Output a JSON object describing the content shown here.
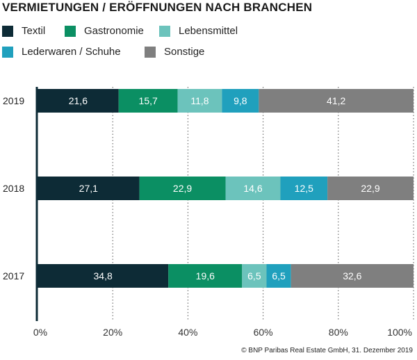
{
  "chart_data": {
    "type": "bar",
    "orientation": "horizontal",
    "stacked": true,
    "title": "VERMIETUNGEN / ERÖFFNUNGEN NACH BRANCHEN",
    "categories": [
      "2019",
      "2018",
      "2017"
    ],
    "series": [
      {
        "name": "Textil",
        "color": "#0d2b36",
        "values": [
          21.6,
          27.1,
          34.8
        ]
      },
      {
        "name": "Gastronomie",
        "color": "#0b8f63",
        "values": [
          15.7,
          22.9,
          19.6
        ]
      },
      {
        "name": "Lebensmittel",
        "color": "#6cc3bc",
        "values": [
          11.8,
          14.6,
          6.5
        ]
      },
      {
        "name": "Lederwaren / Schuhe",
        "color": "#20a0bd",
        "values": [
          9.8,
          12.5,
          6.5
        ]
      },
      {
        "name": "Sonstige",
        "color": "#7f7f7f",
        "values": [
          41.2,
          22.9,
          32.6
        ]
      }
    ],
    "value_labels": [
      [
        "21,6",
        "27,1",
        "34,8"
      ],
      [
        "15,7",
        "22,9",
        "19,6"
      ],
      [
        "11,8",
        "14,6",
        "6,5"
      ],
      [
        "9,8",
        "12,5",
        "6,5"
      ],
      [
        "41,2",
        "22,9",
        "32,6"
      ]
    ],
    "xlim": [
      0,
      100
    ],
    "xticks": [
      "0%",
      "20%",
      "40%",
      "60%",
      "80%",
      "100%"
    ],
    "grid": "vertical dotted",
    "legend": "top-left"
  },
  "credit": "© BNP Paribas Real Estate GmbH, 31. Dezember 2019"
}
